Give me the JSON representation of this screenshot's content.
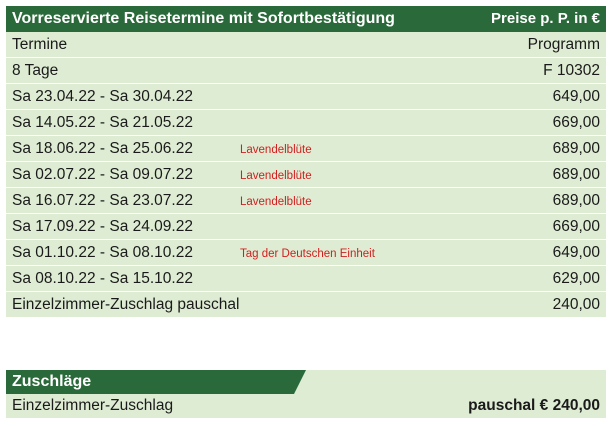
{
  "table": {
    "title": "Vorreservierte Reisetermine mit Sofortbestätigung",
    "price_label": "Preise p. P. in €",
    "column_left": "Termine",
    "column_right": "Programm",
    "duration": "8 Tage",
    "program_code": "F 10302",
    "rows": [
      {
        "dates": "Sa  23.04.22 - Sa  30.04.22",
        "note": "",
        "price": "649,00"
      },
      {
        "dates": "Sa  14.05.22 - Sa  21.05.22",
        "note": "",
        "price": "669,00"
      },
      {
        "dates": "Sa  18.06.22 - Sa  25.06.22",
        "note": "Lavendelblüte",
        "price": "689,00"
      },
      {
        "dates": "Sa  02.07.22 - Sa  09.07.22",
        "note": "Lavendelblüte",
        "price": "689,00"
      },
      {
        "dates": "Sa  16.07.22 - Sa  23.07.22",
        "note": "Lavendelblüte",
        "price": "689,00"
      },
      {
        "dates": "Sa  17.09.22 - Sa  24.09.22",
        "note": "",
        "price": "669,00"
      },
      {
        "dates": "Sa  01.10.22 - Sa  08.10.22",
        "note": "Tag der Deutschen Einheit",
        "price": "649,00"
      },
      {
        "dates": "Sa  08.10.22 - Sa  15.10.22",
        "note": "",
        "price": "629,00"
      }
    ],
    "single_room_label": "Einzelzimmer-Zuschlag pauschal",
    "single_room_price": "240,00"
  },
  "surcharges": {
    "title": "Zuschläge",
    "item_label": "Einzelzimmer-Zuschlag",
    "item_price": "pauschal € 240,00"
  }
}
